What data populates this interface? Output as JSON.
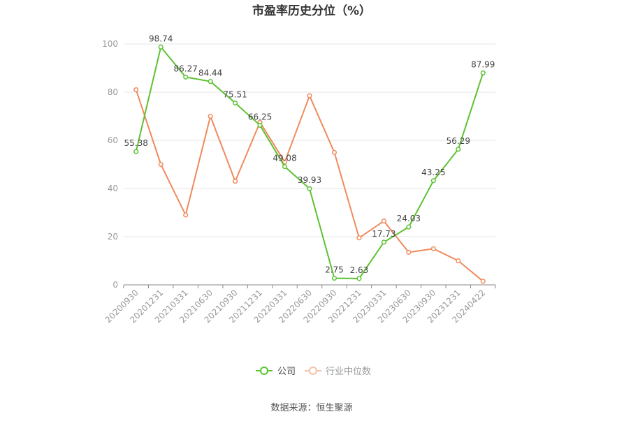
{
  "chart_data": {
    "type": "line",
    "title": "市盈率历史分位（%）",
    "categories": [
      "20200930",
      "20201231",
      "20210331",
      "20210630",
      "20210930",
      "20211231",
      "20220331",
      "20220630",
      "20220930",
      "20221231",
      "20230331",
      "20230630",
      "20230930",
      "20231231",
      "20240422"
    ],
    "series": [
      {
        "name": "公司",
        "color": "#5dc232",
        "values": [
          55.38,
          98.74,
          86.27,
          84.44,
          75.51,
          66.25,
          49.08,
          39.93,
          2.75,
          2.63,
          17.73,
          24.03,
          43.25,
          56.29,
          87.99
        ],
        "labels": [
          "55.38",
          "98.74",
          "86.27",
          "84.44",
          "75.51",
          "66.25",
          "49.08",
          "39.93",
          "2.75",
          "2.63",
          "17.73",
          "24.03",
          "43.25",
          "56.29",
          "87.99"
        ]
      },
      {
        "name": "行业中位数",
        "color": "#f08a5d",
        "values": [
          81,
          50,
          29,
          70,
          43,
          67.5,
          51,
          78.5,
          55,
          19.5,
          26.5,
          13.5,
          15,
          10,
          1.5
        ]
      }
    ],
    "ylim": [
      0,
      100
    ],
    "yticks": [
      "0",
      "20",
      "40",
      "60",
      "80",
      "100"
    ],
    "grid": true,
    "legend_position": "bottom"
  },
  "footer": {
    "source": "数据来源：恒生聚源"
  }
}
